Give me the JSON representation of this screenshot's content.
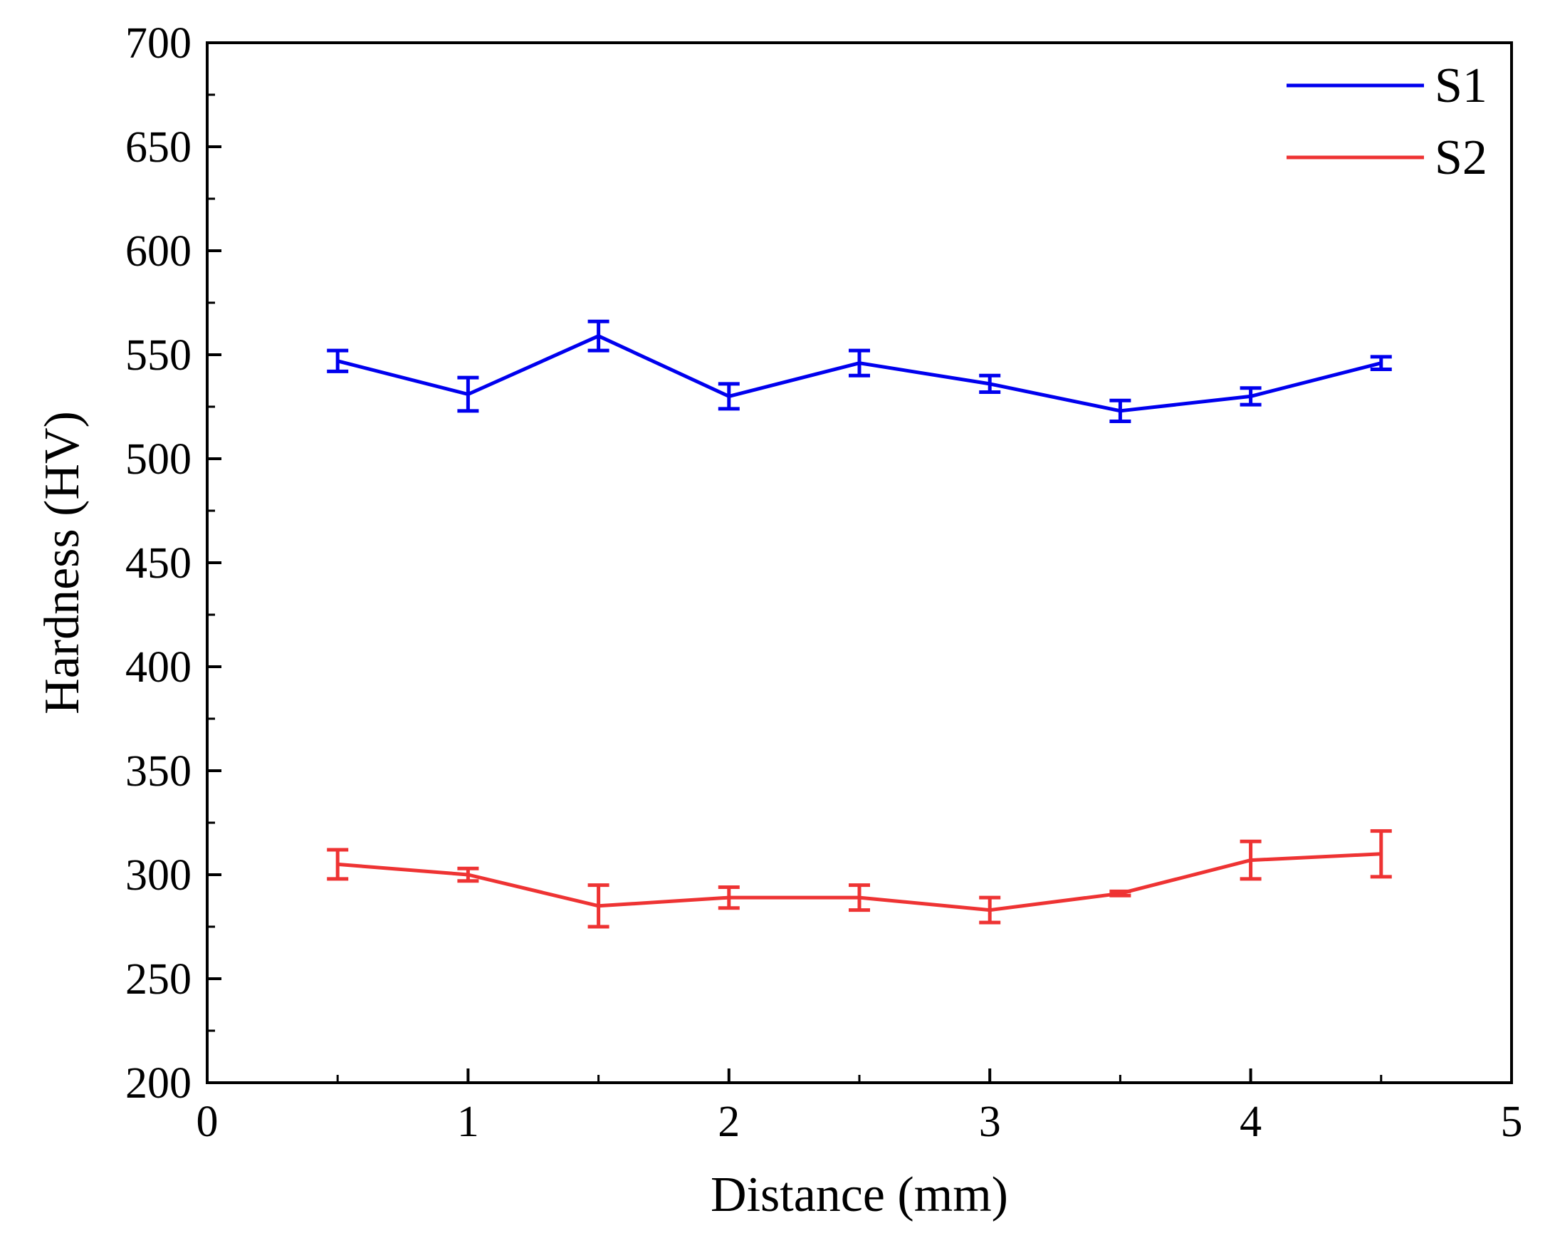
{
  "chart_data": {
    "type": "line",
    "title": "",
    "xlabel": "Distance (mm)",
    "ylabel": "Hardness (HV)",
    "xlim": [
      0,
      5
    ],
    "ylim": [
      200,
      700
    ],
    "xticks": [
      0,
      1,
      2,
      3,
      4,
      5
    ],
    "yticks": [
      200,
      250,
      300,
      350,
      400,
      450,
      500,
      550,
      600,
      650,
      700
    ],
    "grid": false,
    "legend_position": "top-right",
    "x": [
      0.5,
      1.0,
      1.5,
      2.0,
      2.5,
      3.0,
      3.5,
      4.0,
      4.5
    ],
    "series": [
      {
        "name": "S1",
        "color": "#0000ee",
        "values": [
          547,
          531,
          559,
          530,
          546,
          536,
          523,
          530,
          546
        ],
        "errors": [
          5,
          8,
          7,
          6,
          6,
          4,
          5,
          4,
          3
        ]
      },
      {
        "name": "S2",
        "color": "#ee3333",
        "values": [
          305,
          300,
          285,
          289,
          289,
          283,
          291,
          307,
          310
        ],
        "errors": [
          7,
          3,
          10,
          5,
          6,
          6,
          1,
          9,
          11
        ]
      }
    ]
  }
}
